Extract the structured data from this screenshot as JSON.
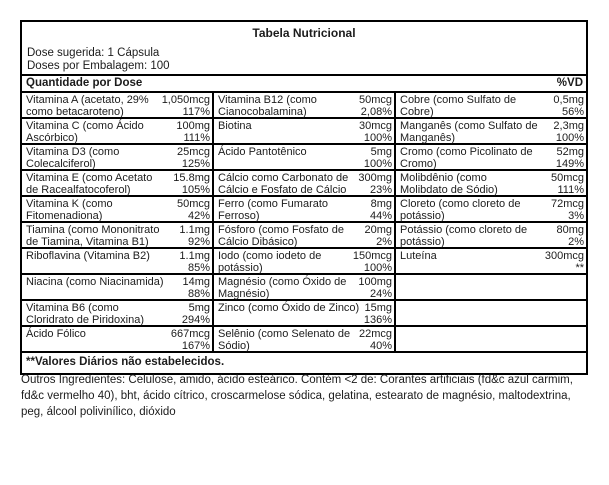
{
  "table": {
    "title": "Tabela Nutricional",
    "dose_line1": "Dose sugerida: 1 Cápsula",
    "dose_line2": "Doses por Embalagem: 100",
    "header": {
      "quantity_label": "Quantidade por Dose",
      "dv_label": "%VD"
    },
    "columns": [
      {
        "rows": [
          {
            "name": "Vitamina A (acetato, 29%\ncomo betacaroteno)",
            "amount": "1,050mcg",
            "dv": "117%"
          },
          {
            "name": "Vitamina C (como Ácido\nAscórbico)",
            "amount": "100mg",
            "dv": "111%"
          },
          {
            "name": "Vitamina D3 (como\nColecalciferol)",
            "amount": "25mcg",
            "dv": "125%"
          },
          {
            "name": "Vitamina E (como Acetato\nde Racealfatocoferol)",
            "amount": "15.8mg",
            "dv": "105%"
          },
          {
            "name": "Vitamina K (como\nFitomenadiona)",
            "amount": "50mcg",
            "dv": "42%"
          },
          {
            "name": "Tiamina (como Mononitrato\nde Tiamina, Vitamina B1)",
            "amount": "1.1mg",
            "dv": "92%"
          },
          {
            "name": "Riboflavina (Vitamina B2)",
            "amount": "1.1mg",
            "dv": "85%"
          },
          {
            "name": "Niacina (como Niacinamida)",
            "amount": "14mg",
            "dv": "88%"
          },
          {
            "name": "Vitamina B6 (como\nCloridrato de Piridoxina)",
            "amount": "5mg",
            "dv": "294%"
          },
          {
            "name": "Ácido Fólico",
            "amount": "667mcg",
            "dv": "167%"
          }
        ]
      },
      {
        "rows": [
          {
            "name": "Vitamina B12 (como\nCianocobalamina)",
            "amount": "50mcg",
            "dv": "2,08%"
          },
          {
            "name": "Biotina",
            "amount": "30mcg",
            "dv": "100%"
          },
          {
            "name": "Ácido Pantotênico",
            "amount": "5mg",
            "dv": "100%"
          },
          {
            "name": "Cálcio como Carbonato de\nCálcio e Fosfato de Cálcio",
            "amount": "300mg",
            "dv": "23%"
          },
          {
            "name": "Ferro (como Fumarato\nFerroso)",
            "amount": "8mg",
            "dv": "44%"
          },
          {
            "name": "Fósforo (como Fosfato de\nCálcio Dibásico)",
            "amount": "20mg",
            "dv": "2%"
          },
          {
            "name": "Iodo (como iodeto de\npotássio)",
            "amount": "150mcg",
            "dv": "100%"
          },
          {
            "name": "Magnésio (como Óxido de\nMagnésio)",
            "amount": "100mg",
            "dv": "24%"
          },
          {
            "name": "Zinco (como Óxido de Zinco)",
            "amount": "15mg",
            "dv": "136%"
          },
          {
            "name": "Selênio (como Selenato de\nSódio)",
            "amount": "22mcg",
            "dv": "40%"
          }
        ]
      },
      {
        "rows": [
          {
            "name": "Cobre (como Sulfato de\nCobre)",
            "amount": "0,5mg",
            "dv": "56%"
          },
          {
            "name": "Manganês (como Sulfato de\nManganês)",
            "amount": "2,3mg",
            "dv": "100%"
          },
          {
            "name": "Cromo (como Picolinato de\nCromo)",
            "amount": "52mg",
            "dv": "149%"
          },
          {
            "name": "Molibdênio (como\nMolibdato de Sódio)",
            "amount": "50mcg",
            "dv": "111%"
          },
          {
            "name": "Cloreto (como cloreto de\npotássio)",
            "amount": "72mcg",
            "dv": "3%"
          },
          {
            "name": "Potássio (como cloreto de\npotássio)",
            "amount": "80mg",
            "dv": "2%"
          },
          {
            "name": "Luteína",
            "amount": "300mcg",
            "dv": "**"
          },
          {
            "name": "",
            "amount": "",
            "dv": ""
          },
          {
            "name": "",
            "amount": "",
            "dv": ""
          },
          {
            "name": "",
            "amount": "",
            "dv": ""
          }
        ]
      }
    ],
    "footnote": "**Valores Diários não estabelecidos."
  },
  "ingredients_text": "Outros Ingredientes: Celulose, amido, ácido esteárico. Contém <2 de: Corantes artificiais (fd&c azul carmim, fd&c vermelho 40), bht, ácido cítrico, croscarmelose sódica, gelatina, estearato de magnésio, maltodextrina, peg, álcool polivinílico, dióxido"
}
